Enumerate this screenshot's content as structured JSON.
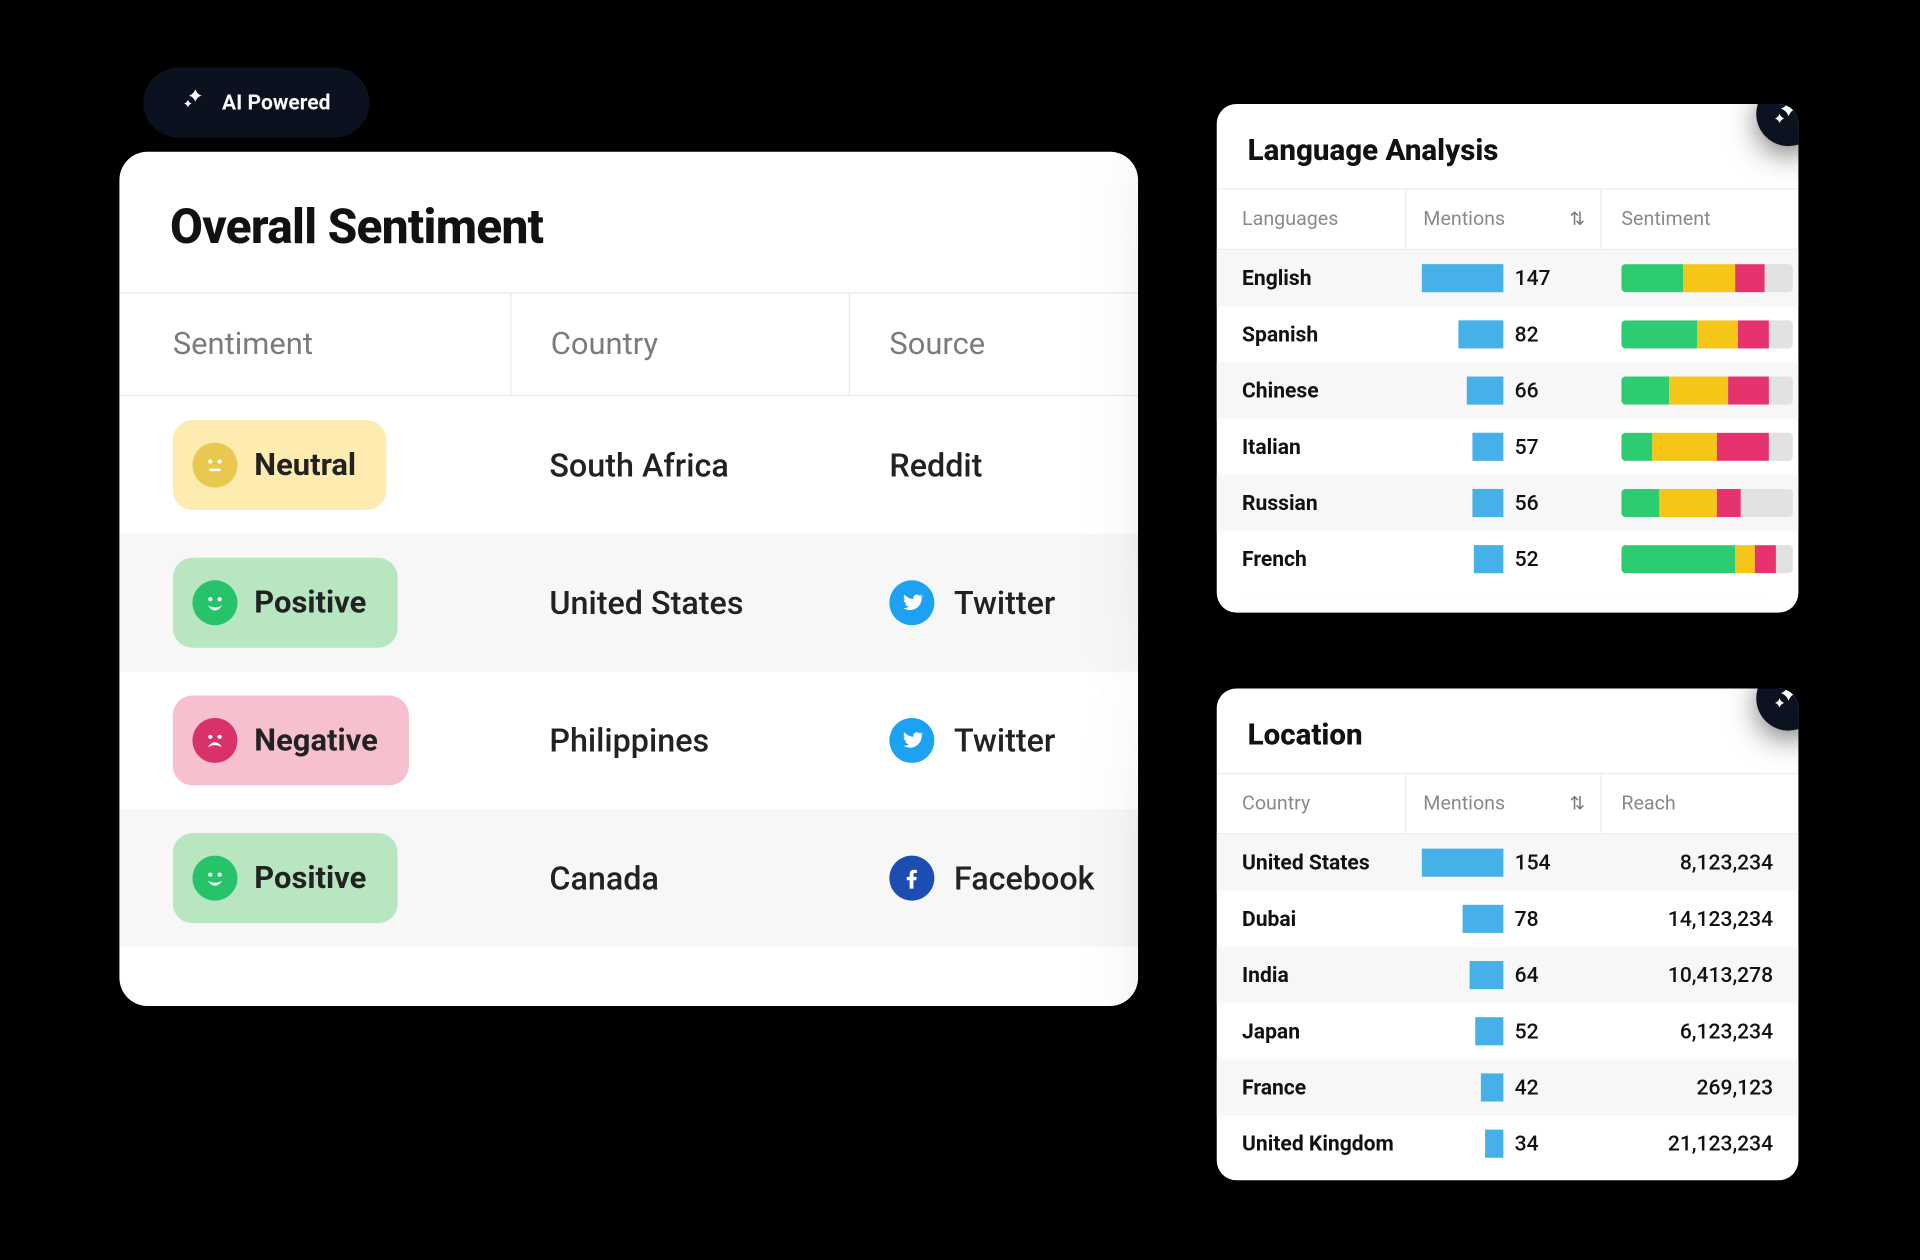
{
  "aiBadge": {
    "label": "AI Powered"
  },
  "colors": {
    "brandDark": "#0b1220",
    "mentionBar": "#45b1e8",
    "sentGreen": "#2ecc71",
    "sentYellow": "#f5c518",
    "sentRed": "#e6336e",
    "sentGray": "#e2e2e2",
    "neutralPill": "#fdebb0",
    "positivePill": "#b7e6c0",
    "negativePill": "#f7c0cf",
    "neutralFace": "#e8c84f",
    "positiveFace": "#27c36b",
    "negativeFace": "#d9326a",
    "twitter": "#1da1f2",
    "facebook": "#1b4db3",
    "reddit": "#111111"
  },
  "overallSentiment": {
    "title": "Overall Sentiment",
    "columns": {
      "sentiment": "Sentiment",
      "country": "Country",
      "source": "Source"
    },
    "rows": [
      {
        "sentiment": "Neutral",
        "sentimentKind": "neutral",
        "country": "South Africa",
        "source": "Reddit",
        "sourceKind": "reddit"
      },
      {
        "sentiment": "Positive",
        "sentimentKind": "positive",
        "country": "United States",
        "source": "Twitter",
        "sourceKind": "twitter"
      },
      {
        "sentiment": "Negative",
        "sentimentKind": "negative",
        "country": "Philippines",
        "source": "Twitter",
        "sourceKind": "twitter"
      },
      {
        "sentiment": "Positive",
        "sentimentKind": "positive",
        "country": "Canada",
        "source": "Facebook",
        "sourceKind": "facebook"
      }
    ]
  },
  "languageAnalysis": {
    "title": "Language Analysis",
    "columns": {
      "languages": "Languages",
      "mentions": "Mentions",
      "sentiment": "Sentiment"
    },
    "maxMentions": 147,
    "rows": [
      {
        "name": "English",
        "mentions": 147,
        "sent": {
          "g": 36,
          "y": 30,
          "r": 18,
          "x": 16
        }
      },
      {
        "name": "Spanish",
        "mentions": 82,
        "sent": {
          "g": 44,
          "y": 24,
          "r": 18,
          "x": 14
        }
      },
      {
        "name": "Chinese",
        "mentions": 66,
        "sent": {
          "g": 28,
          "y": 34,
          "r": 24,
          "x": 14
        }
      },
      {
        "name": "Italian",
        "mentions": 57,
        "sent": {
          "g": 18,
          "y": 38,
          "r": 30,
          "x": 14
        }
      },
      {
        "name": "Russian",
        "mentions": 56,
        "sent": {
          "g": 22,
          "y": 34,
          "r": 14,
          "x": 30
        }
      },
      {
        "name": "French",
        "mentions": 52,
        "sent": {
          "g": 66,
          "y": 12,
          "r": 12,
          "x": 10
        }
      }
    ]
  },
  "location": {
    "title": "Location",
    "columns": {
      "country": "Country",
      "mentions": "Mentions",
      "reach": "Reach"
    },
    "maxMentions": 154,
    "rows": [
      {
        "name": "United States",
        "mentions": 154,
        "reach": "8,123,234"
      },
      {
        "name": "Dubai",
        "mentions": 78,
        "reach": "14,123,234"
      },
      {
        "name": "India",
        "mentions": 64,
        "reach": "10,413,278"
      },
      {
        "name": "Japan",
        "mentions": 52,
        "reach": "6,123,234"
      },
      {
        "name": "France",
        "mentions": 42,
        "reach": "269,123"
      },
      {
        "name": "United Kingdom",
        "mentions": 34,
        "reach": "21,123,234"
      }
    ]
  }
}
